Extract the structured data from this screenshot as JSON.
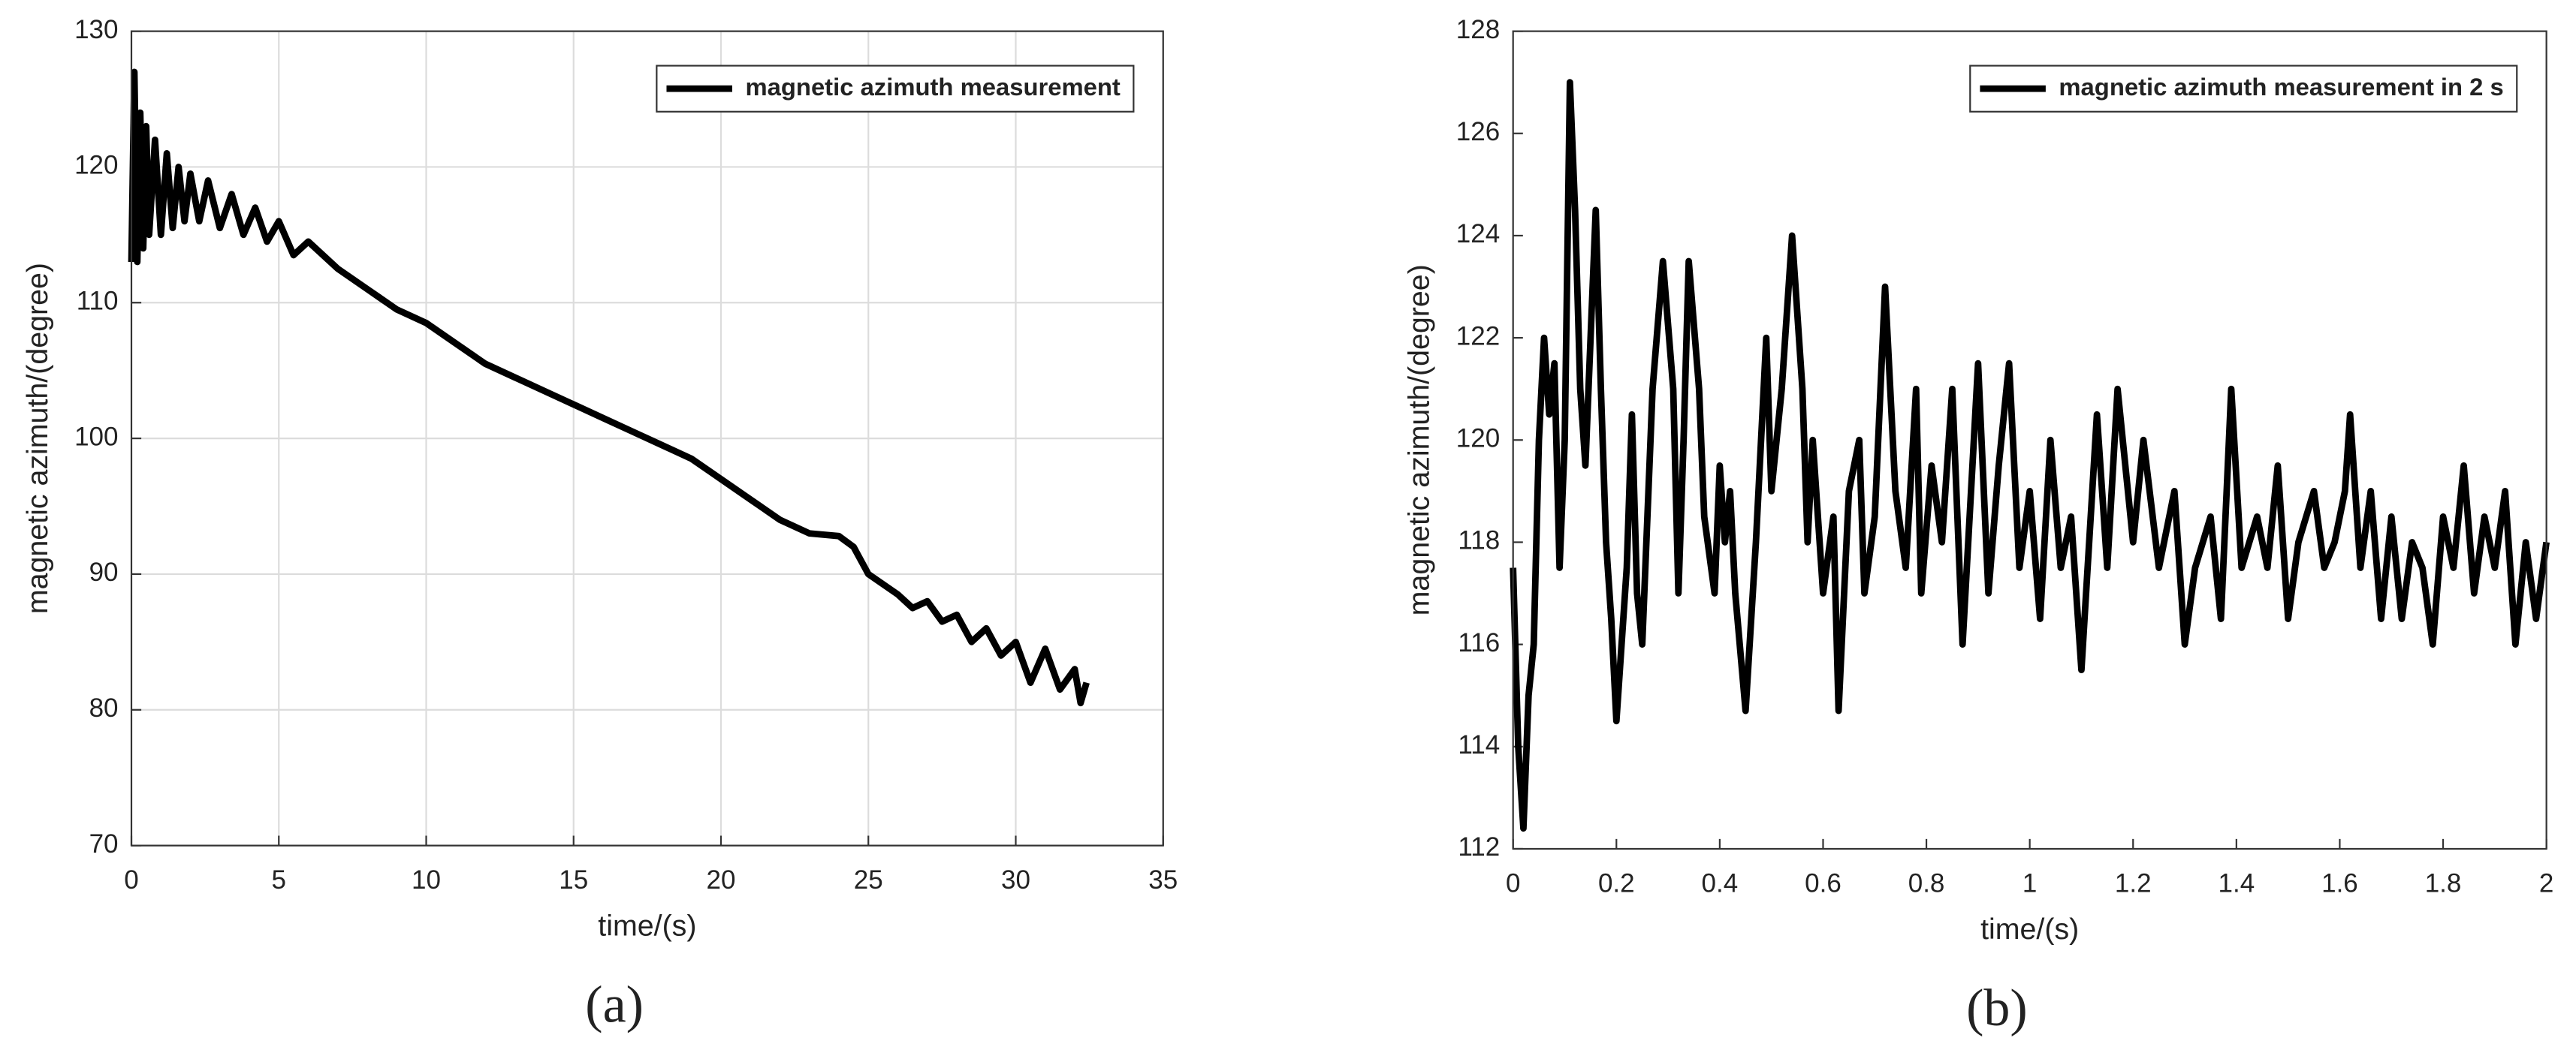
{
  "chart_data": [
    {
      "type": "line",
      "panel_label": "(a)",
      "xlabel": "time/(s)",
      "ylabel": "magnetic azimuth/(degree)",
      "xlim": [
        0,
        35
      ],
      "xticks": [
        0,
        5,
        10,
        15,
        20,
        25,
        30,
        35
      ],
      "ylim": [
        70,
        130
      ],
      "yticks": [
        70,
        80,
        90,
        100,
        110,
        120,
        130
      ],
      "grid": true,
      "legend": "upper right",
      "x": [
        0,
        0.1,
        0.2,
        0.3,
        0.4,
        0.5,
        0.6,
        0.8,
        1.0,
        1.2,
        1.4,
        1.6,
        1.8,
        2.0,
        2.3,
        2.6,
        3,
        3.4,
        3.8,
        4.2,
        4.6,
        5,
        5.5,
        6,
        7,
        8,
        9,
        10,
        11,
        12,
        13,
        14,
        15,
        16,
        17,
        18,
        19,
        20,
        21,
        22,
        23,
        24,
        24.5,
        25,
        26,
        26.5,
        27,
        27.5,
        28,
        28.5,
        29,
        29.5,
        30,
        30.5,
        31,
        31.5,
        32,
        32.2,
        32.4
      ],
      "series": [
        {
          "name": "magnetic azimuth measurement",
          "color": "#000000",
          "values": [
            113,
            127,
            113,
            124,
            114,
            123,
            115,
            122,
            115,
            121,
            115.5,
            120,
            116,
            119.5,
            116,
            119,
            115.5,
            118,
            115,
            117,
            114.5,
            116,
            113.5,
            114.5,
            112.5,
            111,
            109.5,
            108.5,
            107,
            105.5,
            104.5,
            103.5,
            102.5,
            101.5,
            100.5,
            99.5,
            98.5,
            97,
            95.5,
            94,
            93,
            92.8,
            92,
            90,
            88.5,
            87.5,
            88,
            86.5,
            87,
            85,
            86,
            84,
            85,
            82,
            84.5,
            81.5,
            83,
            80.5,
            82
          ]
        }
      ]
    },
    {
      "type": "line",
      "panel_label": "(b)",
      "xlabel": "time/(s)",
      "ylabel": "magnetic azimuth/(degree)",
      "xlim": [
        0,
        2
      ],
      "xticks": [
        0,
        0.2,
        0.4,
        0.6,
        0.8,
        1,
        1.2,
        1.4,
        1.6,
        1.8,
        2
      ],
      "ylim": [
        112,
        128
      ],
      "yticks": [
        112,
        114,
        116,
        118,
        120,
        122,
        124,
        126,
        128
      ],
      "grid": false,
      "legend": "upper right",
      "x": [
        0,
        0.01,
        0.02,
        0.03,
        0.04,
        0.05,
        0.06,
        0.07,
        0.08,
        0.09,
        0.1,
        0.11,
        0.12,
        0.13,
        0.14,
        0.15,
        0.16,
        0.17,
        0.18,
        0.19,
        0.2,
        0.22,
        0.23,
        0.24,
        0.25,
        0.27,
        0.29,
        0.31,
        0.32,
        0.33,
        0.34,
        0.36,
        0.37,
        0.39,
        0.4,
        0.41,
        0.42,
        0.43,
        0.45,
        0.47,
        0.49,
        0.5,
        0.52,
        0.54,
        0.56,
        0.57,
        0.58,
        0.6,
        0.62,
        0.63,
        0.65,
        0.67,
        0.68,
        0.7,
        0.72,
        0.74,
        0.76,
        0.78,
        0.79,
        0.81,
        0.83,
        0.85,
        0.87,
        0.9,
        0.92,
        0.94,
        0.96,
        0.98,
        1.0,
        1.02,
        1.04,
        1.06,
        1.08,
        1.1,
        1.13,
        1.15,
        1.17,
        1.2,
        1.22,
        1.25,
        1.28,
        1.3,
        1.32,
        1.35,
        1.37,
        1.39,
        1.41,
        1.44,
        1.46,
        1.48,
        1.5,
        1.52,
        1.55,
        1.57,
        1.59,
        1.61,
        1.62,
        1.64,
        1.66,
        1.68,
        1.7,
        1.72,
        1.74,
        1.76,
        1.78,
        1.8,
        1.82,
        1.84,
        1.86,
        1.88,
        1.9,
        1.92,
        1.94,
        1.96,
        1.98,
        2.0
      ],
      "series": [
        {
          "name": "magnetic azimuth measurement in 2 s",
          "color": "#000000",
          "values": [
            117.5,
            114,
            112.4,
            115,
            116,
            120,
            122,
            120.5,
            121.5,
            117.5,
            120,
            127,
            124.5,
            121,
            119.5,
            122,
            124.5,
            121,
            118,
            116.5,
            114.5,
            117.5,
            120.5,
            117,
            116,
            121,
            123.5,
            121,
            117,
            120,
            123.5,
            121,
            118.5,
            117,
            119.5,
            118,
            119,
            117,
            114.7,
            118,
            122,
            119,
            121,
            124,
            121,
            118,
            120,
            117,
            118.5,
            114.7,
            119,
            120,
            117,
            118.5,
            123,
            119,
            117.5,
            121,
            117,
            119.5,
            118,
            121,
            116,
            121.5,
            117,
            119.5,
            121.5,
            117.5,
            119,
            116.5,
            120,
            117.5,
            118.5,
            115.5,
            120.5,
            117.5,
            121,
            118,
            120,
            117.5,
            119,
            116,
            117.5,
            118.5,
            116.5,
            121,
            117.5,
            118.5,
            117.5,
            119.5,
            116.5,
            118,
            119,
            117.5,
            118,
            119,
            120.5,
            117.5,
            119,
            116.5,
            118.5,
            116.5,
            118,
            117.5,
            116,
            118.5,
            117.5,
            119.5,
            117,
            118.5,
            117.5,
            119,
            116,
            118,
            116.5,
            118
          ]
        }
      ]
    }
  ]
}
